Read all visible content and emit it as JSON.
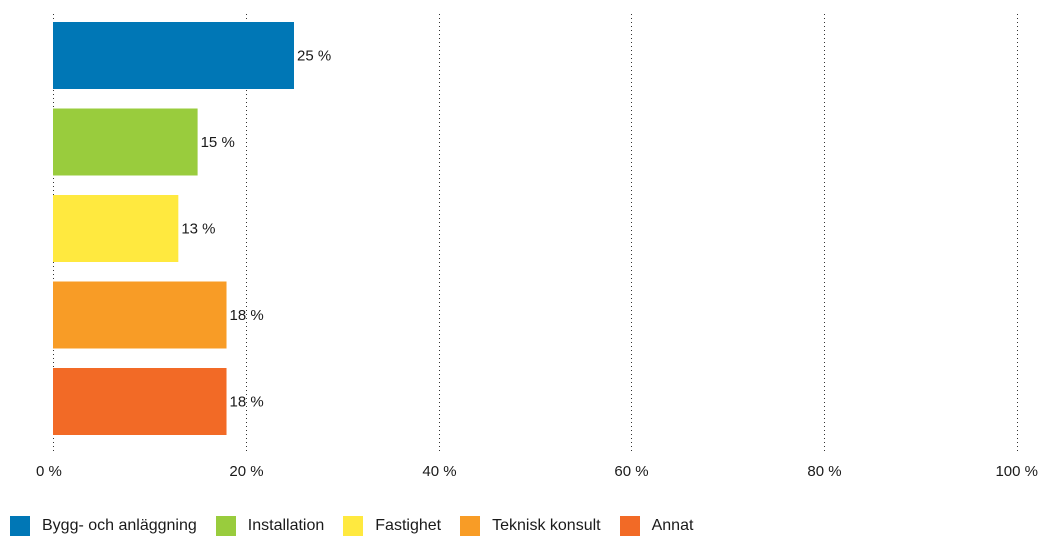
{
  "chart_data": {
    "type": "bar",
    "orientation": "horizontal",
    "categories": [
      "Bygg- och anläggning",
      "Installation",
      "Fastighet",
      "Teknisk konsult",
      "Annat"
    ],
    "values": [
      25,
      15,
      13,
      18,
      18
    ],
    "value_labels": [
      "25 %",
      "15 %",
      "13 %",
      "18 %",
      "18 %"
    ],
    "colors": [
      "#0077b6",
      "#99cc3d",
      "#ffe93f",
      "#f89c26",
      "#f26a26"
    ],
    "xlim": [
      0,
      100
    ],
    "x_ticks": [
      0,
      20,
      40,
      60,
      80,
      100
    ],
    "x_tick_labels": [
      "0 %",
      "20 %",
      "40 %",
      "60 %",
      "80 %",
      "100 %"
    ],
    "grid": "vertical dotted",
    "legend": "bottom-left",
    "title": "",
    "xlabel": "",
    "ylabel": ""
  },
  "legend": {
    "items": [
      {
        "label": "Bygg- och anläggning",
        "color": "#0077b6"
      },
      {
        "label": "Installation",
        "color": "#99cc3d"
      },
      {
        "label": "Fastighet",
        "color": "#ffe93f"
      },
      {
        "label": "Teknisk konsult",
        "color": "#f89c26"
      },
      {
        "label": "Annat",
        "color": "#f26a26"
      }
    ]
  }
}
